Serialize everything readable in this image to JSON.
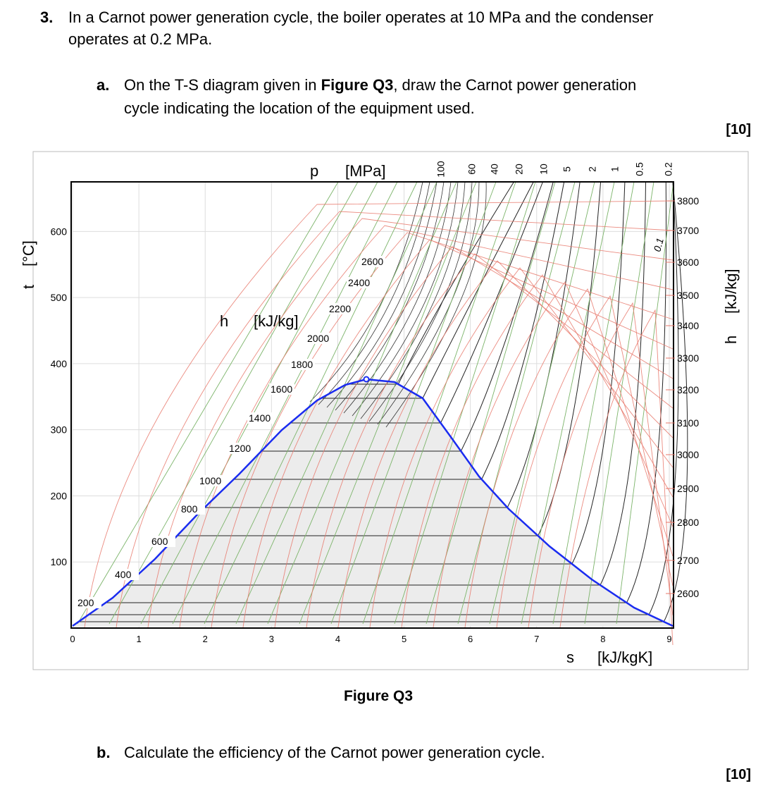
{
  "question": {
    "number": "3.",
    "lines": [
      "In a Carnot power generation cycle, the boiler operates at 10 MPa and the condenser",
      "operates at 0.2 MPa."
    ]
  },
  "part_a": {
    "label": "a.",
    "line1_before": "On the T-S diagram given in ",
    "figure_ref": "Figure Q3",
    "line1_after": ", draw the Carnot power generation",
    "line2": "cycle indicating the location of the equipment used.",
    "marks": "[10]"
  },
  "figure": {
    "caption": "Figure Q3",
    "t_axis": {
      "symbol": "t",
      "unit": "[°C]",
      "ylim": [
        0,
        675
      ],
      "ticks": [
        100,
        200,
        300,
        400,
        500,
        600
      ]
    },
    "s_axis": {
      "symbol": "s",
      "unit": "[kJ/kgK]",
      "xlim": [
        0,
        9
      ],
      "ticks": [
        0,
        1,
        2,
        3,
        4,
        5,
        6,
        7,
        8,
        9
      ]
    },
    "p_axis": {
      "symbol": "p",
      "unit": "[MPa]",
      "labels": [
        "100",
        "60",
        "40",
        "20",
        "10",
        "5",
        "2",
        "1",
        "0.5",
        "0.2"
      ],
      "inline_label": "0.1"
    },
    "h_axis": {
      "symbol": "h",
      "unit": "[kJ/kg]",
      "right_labels": [
        3800,
        3700,
        3600,
        3500,
        3400,
        3300,
        3200,
        3100,
        3000,
        2900,
        2800,
        2700,
        2600
      ],
      "curve_labels": [
        200,
        400,
        600,
        800,
        1000,
        1200,
        1400,
        1600,
        1800,
        2000,
        2200,
        2400,
        2600
      ]
    }
  },
  "part_b": {
    "label": "b.",
    "text": "Calculate the efficiency of the Carnot power generation cycle.",
    "marks": "[10]"
  }
}
